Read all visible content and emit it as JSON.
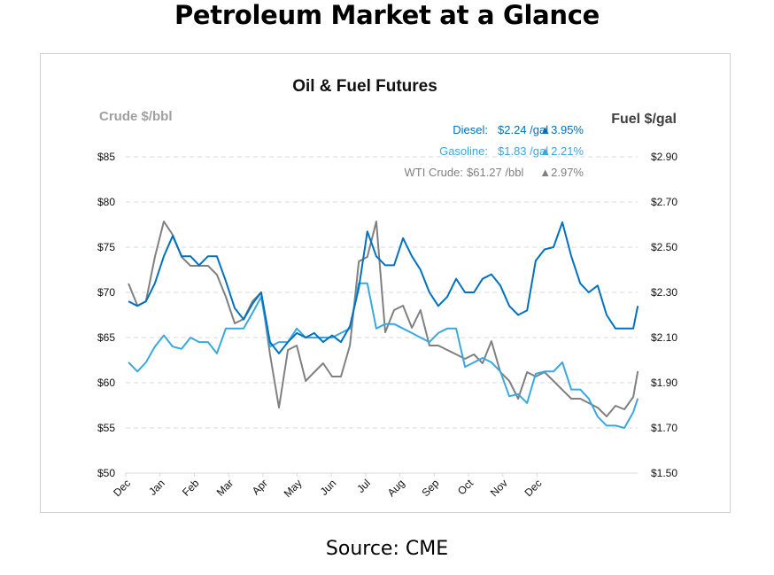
{
  "page": {
    "title": "Petroleum Market at a Glance",
    "source": "Source: CME"
  },
  "chart_data": {
    "type": "line",
    "title": "Oil & Fuel Futures",
    "ylabel_left": "Crude $/bbl",
    "ylabel_right": "Fuel $/gal",
    "ylim_left": [
      50,
      85
    ],
    "ylim_right": [
      1.5,
      2.9
    ],
    "yticks_left": [
      "$50",
      "$55",
      "$60",
      "$65",
      "$70",
      "$75",
      "$80",
      "$85"
    ],
    "yticks_right": [
      "$1.50",
      "$1.70",
      "$1.90",
      "$2.10",
      "$2.30",
      "$2.50",
      "$2.70",
      "$2.90"
    ],
    "xticks": [
      "Dec",
      "Jan",
      "Feb",
      "Mar",
      "Apr",
      "May",
      "Jun",
      "Jul",
      "Aug",
      "Sep",
      "Oct",
      "Nov",
      "Dec"
    ],
    "x_unit": "months since first Dec tick",
    "xlim": [
      0,
      14.94
    ],
    "grid": true,
    "legend": {
      "placement": "top-right",
      "entries": [
        {
          "label": "Diesel:",
          "price": "$2.24 /gal",
          "change": "▲3.95%",
          "color": "#0070C0"
        },
        {
          "label": "Gasoline:",
          "price": "$1.83 /gal",
          "change": "▲2.21%",
          "color": "#3AA8E0"
        },
        {
          "label": "WTI Crude:",
          "price": "$61.27 /bbl",
          "change": "▲2.97%",
          "color": "#808080"
        }
      ]
    },
    "x": [
      0.08,
      0.34,
      0.59,
      0.85,
      1.11,
      1.37,
      1.63,
      1.89,
      2.14,
      2.4,
      2.66,
      2.92,
      3.18,
      3.44,
      3.7,
      3.95,
      4.21,
      4.47,
      4.73,
      4.99,
      5.25,
      5.5,
      5.76,
      6.02,
      6.28,
      6.54,
      6.8,
      7.05,
      7.31,
      7.57,
      7.83,
      8.09,
      8.35,
      8.6,
      8.86,
      9.12,
      9.38,
      9.64,
      9.9,
      10.16,
      10.41,
      10.67,
      10.93,
      11.19,
      11.45,
      11.71,
      11.96,
      12.22,
      12.48,
      12.74,
      13.0,
      13.26,
      13.51,
      13.77,
      14.03,
      14.29,
      14.55,
      14.81,
      14.94
    ],
    "series": [
      {
        "name": "WTI Crude",
        "axis": "left",
        "color": "#808080",
        "values": [
          70.98,
          68.53,
          69.02,
          73.92,
          77.84,
          76.37,
          73.92,
          72.94,
          72.94,
          72.94,
          71.96,
          69.51,
          66.57,
          67.06,
          69.02,
          70.0,
          63.14,
          57.25,
          63.63,
          64.12,
          60.2,
          61.18,
          62.16,
          60.69,
          60.69,
          64.12,
          73.43,
          73.92,
          77.84,
          65.59,
          68.04,
          68.53,
          66.08,
          68.04,
          64.12,
          64.12,
          63.63,
          63.14,
          62.65,
          63.14,
          62.16,
          64.61,
          61.18,
          60.2,
          58.24,
          61.18,
          60.69,
          61.18,
          60.2,
          59.22,
          58.24,
          58.24,
          57.75,
          57.25,
          56.27,
          57.45,
          57.06,
          58.43,
          61.27
        ]
      },
      {
        "name": "Diesel",
        "axis": "right",
        "color": "#0070C0",
        "values": [
          2.26,
          2.24,
          2.26,
          2.34,
          2.46,
          2.55,
          2.46,
          2.46,
          2.42,
          2.46,
          2.46,
          2.35,
          2.23,
          2.18,
          2.25,
          2.3,
          2.08,
          2.03,
          2.08,
          2.12,
          2.1,
          2.12,
          2.08,
          2.11,
          2.08,
          2.15,
          2.32,
          2.57,
          2.46,
          2.42,
          2.42,
          2.54,
          2.46,
          2.4,
          2.3,
          2.24,
          2.28,
          2.36,
          2.3,
          2.3,
          2.36,
          2.38,
          2.33,
          2.24,
          2.2,
          2.22,
          2.44,
          2.49,
          2.5,
          2.61,
          2.46,
          2.34,
          2.3,
          2.33,
          2.2,
          2.14,
          2.14,
          2.14,
          2.24
        ]
      },
      {
        "name": "Gasoline",
        "axis": "right",
        "color": "#3AA8E0",
        "values": [
          1.99,
          1.95,
          1.99,
          2.06,
          2.11,
          2.06,
          2.05,
          2.1,
          2.08,
          2.08,
          2.03,
          2.14,
          2.14,
          2.14,
          2.21,
          2.28,
          2.06,
          2.08,
          2.08,
          2.14,
          2.1,
          2.1,
          2.1,
          2.1,
          2.12,
          2.14,
          2.34,
          2.34,
          2.14,
          2.16,
          2.16,
          2.14,
          2.12,
          2.1,
          2.08,
          2.12,
          2.14,
          2.14,
          1.97,
          1.99,
          2.01,
          1.99,
          1.95,
          1.84,
          1.85,
          1.81,
          1.94,
          1.95,
          1.95,
          1.99,
          1.87,
          1.87,
          1.83,
          1.75,
          1.71,
          1.71,
          1.7,
          1.77,
          1.83
        ]
      }
    ]
  }
}
